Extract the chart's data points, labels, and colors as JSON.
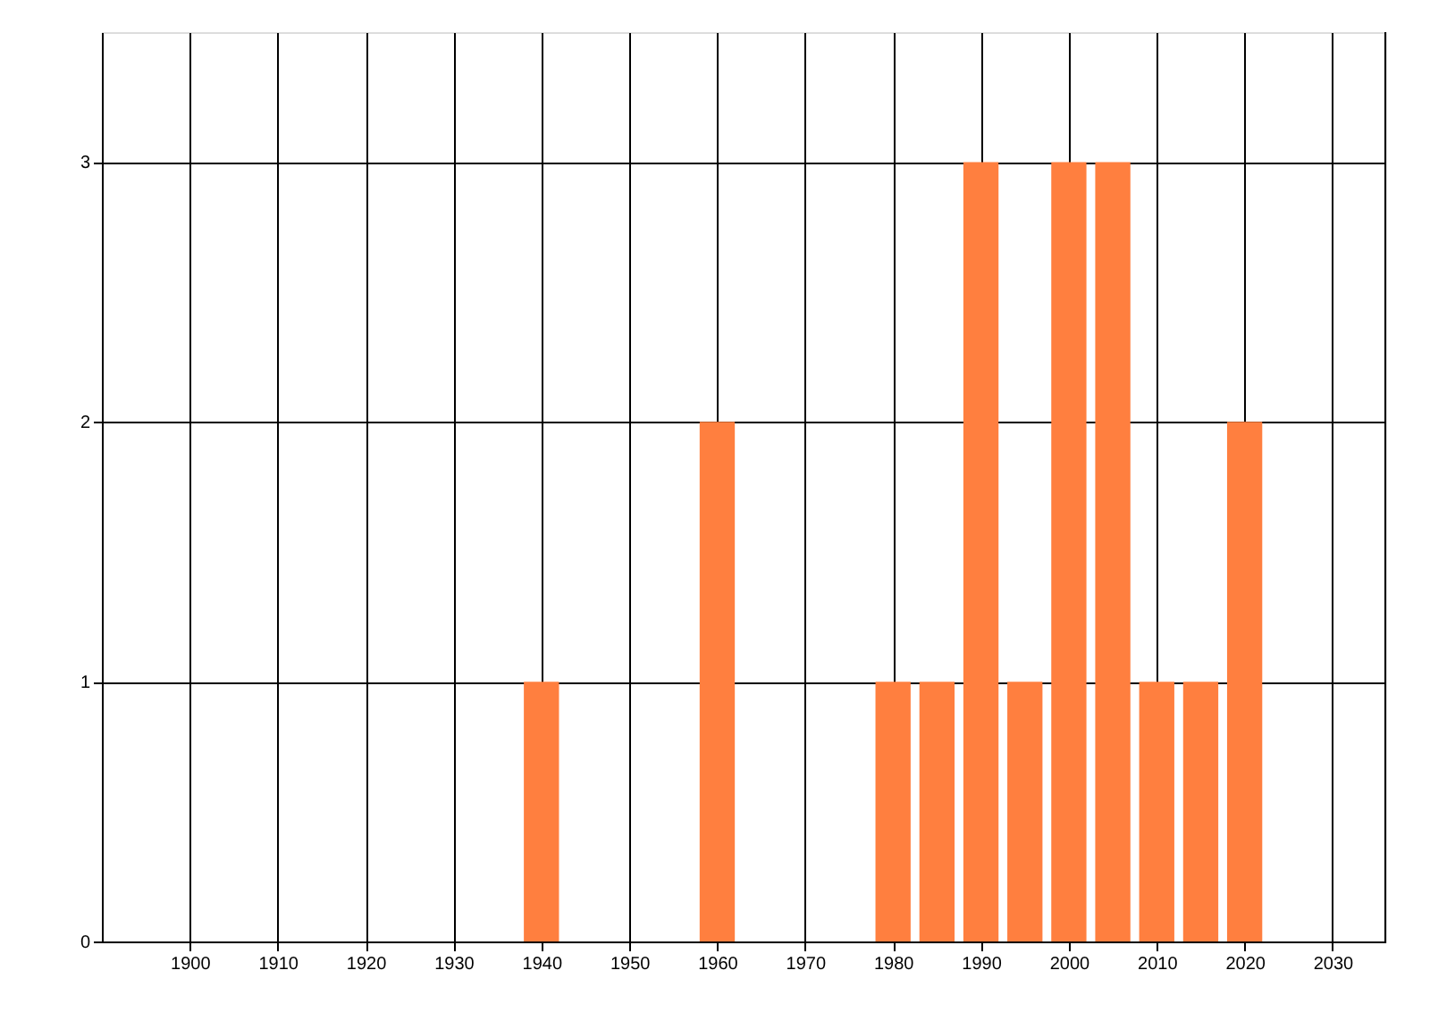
{
  "chart_data": {
    "type": "bar",
    "x": [
      1940,
      1960,
      1980,
      1985,
      1990,
      1995,
      2000,
      2005,
      2010,
      2015,
      2020
    ],
    "values": [
      1,
      2,
      1,
      1,
      3,
      1,
      3,
      3,
      1,
      1,
      2
    ],
    "color": "#ff7f3f",
    "xlim": [
      1890,
      2036
    ],
    "xticks": [
      1900,
      1910,
      1920,
      1930,
      1940,
      1950,
      1960,
      1970,
      1980,
      1990,
      2000,
      2010,
      2020,
      2030
    ],
    "ylim": [
      0,
      3.5
    ],
    "yticks": [
      0,
      1,
      2,
      3
    ],
    "grid": true
  }
}
